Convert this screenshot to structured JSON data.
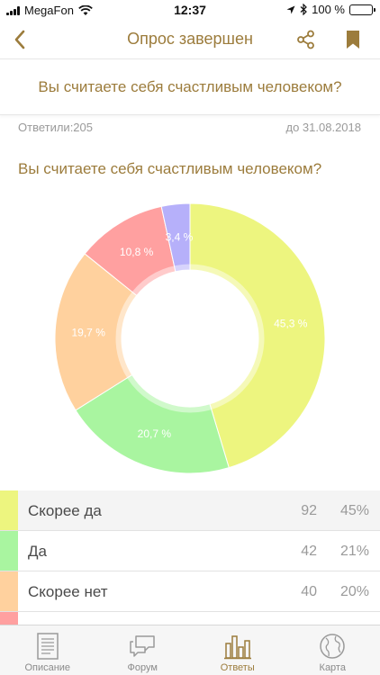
{
  "status_bar": {
    "carrier": "MegaFon",
    "time": "12:37",
    "battery": "100 %"
  },
  "nav": {
    "title": "Опрос завершен",
    "back_icon": "chevron-left-icon",
    "share_icon": "share-icon",
    "bookmark_icon": "bookmark-icon"
  },
  "question": {
    "text": "Вы считаете себя счастливым человеком?"
  },
  "meta": {
    "respondents": "Ответили:205",
    "deadline": "до 31.08.2018"
  },
  "chart_title": "Вы считаете себя счастливым человеком?",
  "chart_data": {
    "type": "pie",
    "donut": true,
    "slices": [
      {
        "value": 45.3,
        "label": "45,3 %",
        "color": "#edf57f"
      },
      {
        "value": 20.7,
        "label": "20,7 %",
        "color": "#a9f5a0"
      },
      {
        "value": 19.7,
        "label": "19,7 %",
        "color": "#ffd19e"
      },
      {
        "value": 10.8,
        "label": "10,8 %",
        "color": "#ffa0a0"
      },
      {
        "value": 3.4,
        "label": "3,4 %",
        "color": "#b6b0fa"
      }
    ]
  },
  "legend": [
    {
      "label": "Скорее да",
      "count": "92",
      "percent": "45%",
      "color": "#edf57f"
    },
    {
      "label": "Да",
      "count": "42",
      "percent": "21%",
      "color": "#a9f5a0"
    },
    {
      "label": "Скорее нет",
      "count": "40",
      "percent": "20%",
      "color": "#ffd19e"
    }
  ],
  "legend_partial_color": "#ffa0a0",
  "tabs": [
    {
      "label": "Описание",
      "icon": "document-icon"
    },
    {
      "label": "Форум",
      "icon": "chat-icon"
    },
    {
      "label": "Ответы",
      "icon": "bar-chart-icon"
    },
    {
      "label": "Карта",
      "icon": "globe-icon"
    }
  ],
  "colors": {
    "accent": "#9c7c3c",
    "muted": "#9a9a9a"
  }
}
